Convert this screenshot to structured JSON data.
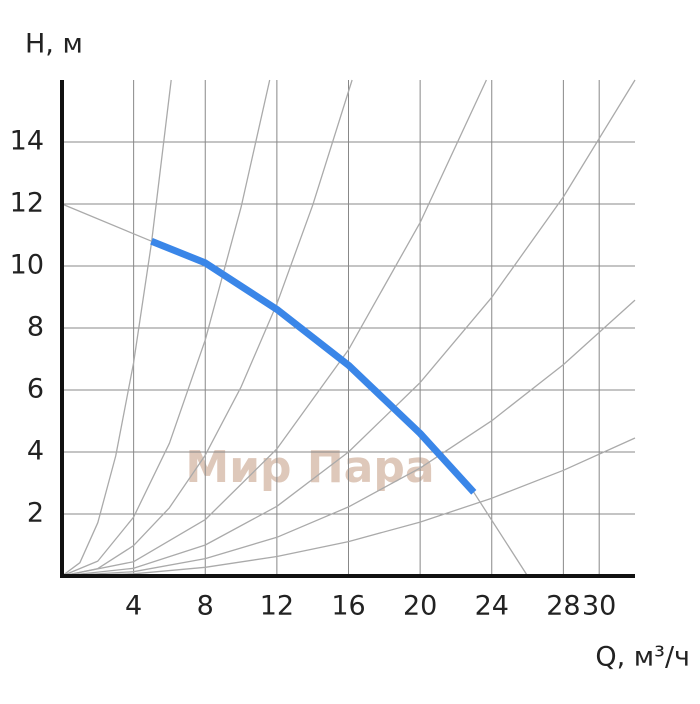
{
  "chart_data": {
    "type": "line",
    "y_label": "H, м",
    "x_label": "Q, м³/ч",
    "watermark": "Мир Пара",
    "xlim": [
      0,
      32
    ],
    "ylim": [
      0,
      16
    ],
    "xticks": [
      4,
      8,
      12,
      16,
      20,
      24,
      28,
      30
    ],
    "yticks": [
      2,
      4,
      6,
      8,
      10,
      12,
      14
    ],
    "grid": true,
    "series": [
      {
        "color": "#aaaaaa",
        "x": [
          0,
          1,
          2,
          3,
          4,
          5,
          6.1
        ],
        "values": [
          0,
          0.43,
          1.72,
          3.87,
          6.88,
          10.75,
          16
        ]
      },
      {
        "color": "#aaaaaa",
        "x": [
          0,
          2,
          4,
          6,
          8,
          10,
          11.6
        ],
        "values": [
          0,
          0.48,
          1.9,
          4.28,
          7.62,
          11.9,
          16
        ]
      },
      {
        "color": "#aaaaaa",
        "x": [
          0,
          2,
          4,
          6,
          8,
          10,
          12,
          14,
          16.2
        ],
        "values": [
          0,
          0.24,
          0.98,
          2.2,
          3.9,
          6.1,
          8.78,
          11.96,
          16
        ]
      },
      {
        "color": "#aaaaaa",
        "x": [
          0,
          4,
          8,
          12,
          16,
          20,
          23.7
        ],
        "values": [
          0,
          0.46,
          1.82,
          4.1,
          7.3,
          11.4,
          16
        ]
      },
      {
        "color": "#aaaaaa",
        "x": [
          0,
          4,
          8,
          12,
          16,
          20,
          24,
          28,
          32
        ],
        "values": [
          0,
          0.25,
          1,
          2.25,
          4,
          6.24,
          8.99,
          12.23,
          16
        ]
      },
      {
        "color": "#aaaaaa",
        "x": [
          0,
          4,
          8,
          12,
          16,
          20,
          24,
          28,
          32
        ],
        "values": [
          0,
          0.14,
          0.56,
          1.25,
          2.23,
          3.48,
          5.01,
          6.82,
          8.9
        ]
      },
      {
        "color": "#aaaaaa",
        "x": [
          0,
          4,
          8,
          12,
          16,
          20,
          24,
          28,
          32
        ],
        "values": [
          0,
          0.07,
          0.28,
          0.63,
          1.11,
          1.74,
          2.51,
          3.41,
          4.45
        ]
      },
      {
        "color": "#aaaaaa",
        "x": [
          0,
          5,
          8,
          12,
          16,
          20,
          23,
          26
        ],
        "values": [
          12,
          10.8,
          10.1,
          8.6,
          6.8,
          4.6,
          2.7,
          0
        ]
      },
      {
        "color": "#3a86e8",
        "width": 7,
        "x": [
          5,
          8,
          12,
          16,
          20,
          23
        ],
        "values": [
          10.8,
          10.1,
          8.6,
          6.8,
          4.6,
          2.7
        ]
      }
    ]
  }
}
